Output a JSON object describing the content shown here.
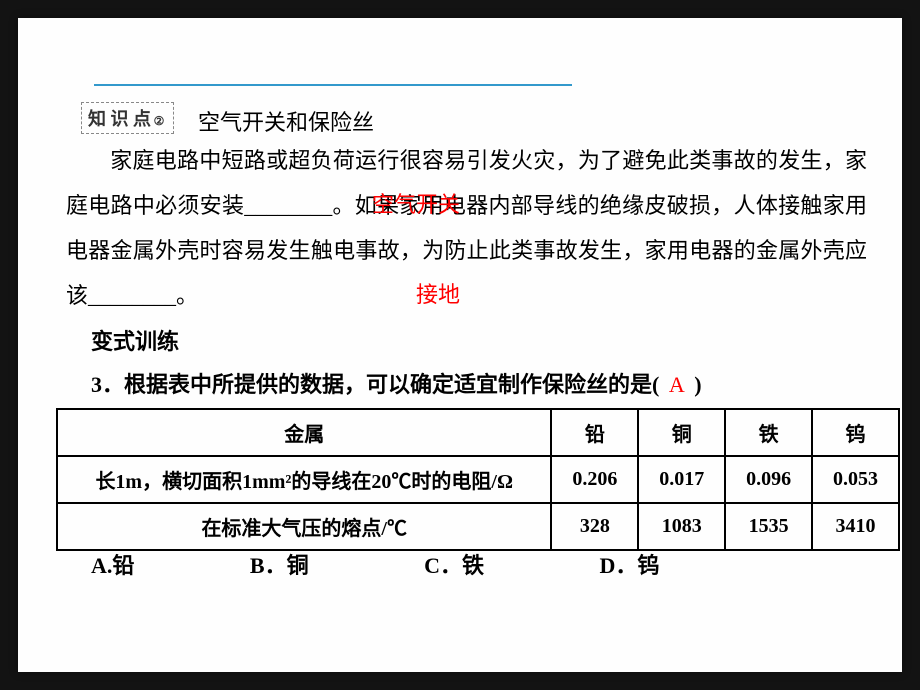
{
  "knowledge_tag": "知 识 点",
  "knowledge_num": "②",
  "knowledge_title": "空气开关和保险丝",
  "para1_part1": "家庭电路中短路或超负荷运行很容易引发火灾，为了避免此类事故的发生，家庭电路中必须安装________。如果家用电器内部导线的绝缘皮破损，人体接触家用电器金属外壳时容易发生触电事故，为防止此类事故发生，家用电器的金属外壳应该________。",
  "answer1": "空气开关",
  "answer2": "接地",
  "section_title": "变式训练",
  "question_text": "3．根据表中所提供的数据，可以确定适宜制作保险丝的是(",
  "question_answer": "A",
  "question_close": ")",
  "table": {
    "header_label": "金属",
    "headers": [
      "铅",
      "铜",
      "铁",
      "钨"
    ],
    "row1_label": "长1m，横切面积1mm²的导线在20℃时的电阻/Ω",
    "row1_data": [
      "0.206",
      "0.017",
      "0.096",
      "0.053"
    ],
    "row2_label": "在标准大气压的熔点/℃",
    "row2_data": [
      "328",
      "1083",
      "1535",
      "3410"
    ]
  },
  "options": {
    "a": "A.铅",
    "b": "B．铜",
    "c": "C．铁",
    "d": "D．钨"
  },
  "colors": {
    "page_bg": "#fefefe",
    "outer_bg": "#131313",
    "accent_line": "#3399cc",
    "answer_red": "#ff0000",
    "text": "#000000",
    "tag_border": "#888888"
  }
}
